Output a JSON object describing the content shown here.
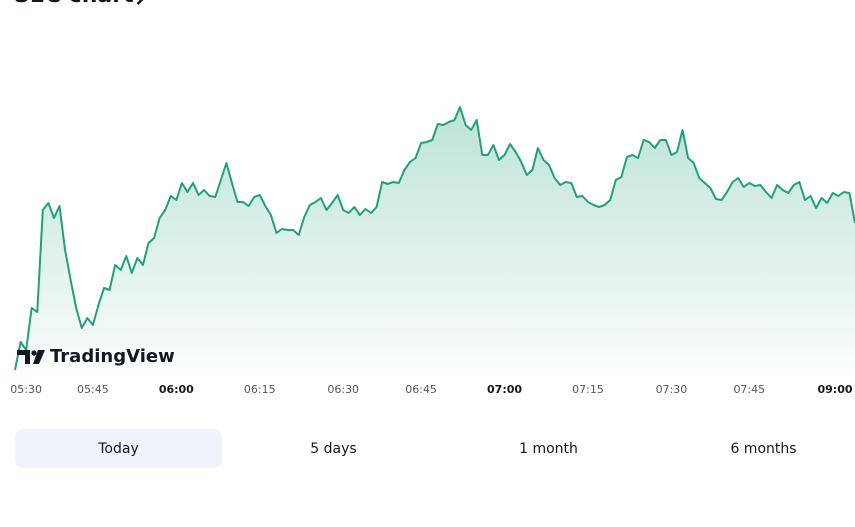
{
  "header": {
    "title": "SEC chart"
  },
  "chart_data": {
    "type": "line",
    "color": "#22a07b",
    "watermark": "TradingView",
    "ylim": [
      0,
      342
    ],
    "categories": [
      null,
      null,
      "05:30",
      null,
      null,
      null,
      null,
      null,
      null,
      null,
      null,
      null,
      null,
      null,
      "05:45",
      null,
      null,
      null,
      null,
      null,
      null,
      null,
      null,
      null,
      null,
      null,
      null,
      null,
      null,
      "06:00",
      null,
      null,
      null,
      null,
      null,
      null,
      null,
      null,
      null,
      null,
      null,
      null,
      null,
      null,
      "06:15",
      null,
      null,
      null,
      null,
      null,
      null,
      null,
      null,
      null,
      null,
      null,
      null,
      null,
      null,
      "06:30",
      null,
      null,
      null,
      null,
      null,
      null,
      null,
      null,
      null,
      null,
      null,
      null,
      null,
      "06:45",
      null,
      null,
      null,
      null,
      null,
      null,
      null,
      null,
      null,
      null,
      null,
      null,
      null,
      null,
      "07:00",
      null,
      null,
      null,
      null,
      null,
      null,
      null,
      null,
      null,
      null,
      null,
      null,
      null,
      null,
      "07:15",
      null,
      null,
      null,
      null,
      null,
      null,
      null,
      null,
      null,
      null,
      null,
      null,
      null,
      null,
      "07:30",
      null,
      null,
      null,
      null,
      null,
      null,
      null,
      null,
      null,
      null,
      null,
      null,
      null,
      "07:45",
      null,
      null,
      null,
      null,
      null,
      null,
      null,
      null,
      null,
      null,
      null,
      null,
      null,
      null,
      null,
      "09:00",
      null,
      null,
      null
    ],
    "bold_labels": [
      29,
      88,
      148
    ],
    "values": [
      2,
      30,
      22,
      64,
      60,
      162,
      169,
      154,
      166,
      122,
      92,
      64,
      44,
      54,
      47,
      67,
      84,
      82,
      107,
      102,
      116,
      99,
      114,
      107,
      129,
      134,
      154,
      162,
      176,
      172,
      189,
      180,
      189,
      177,
      182,
      176,
      175,
      192,
      209,
      189,
      170,
      170,
      166,
      175,
      177,
      166,
      157,
      139,
      143,
      142,
      142,
      137,
      155,
      167,
      170,
      174,
      162,
      169,
      177,
      162,
      159,
      165,
      157,
      163,
      159,
      165,
      190,
      188,
      190,
      189,
      202,
      210,
      214,
      229,
      230,
      232,
      248,
      247,
      250,
      252,
      265,
      247,
      242,
      252,
      217,
      217,
      227,
      212,
      217,
      228,
      220,
      210,
      197,
      202,
      224,
      212,
      207,
      194,
      187,
      190,
      189,
      175,
      176,
      170,
      167,
      165,
      167,
      172,
      192,
      195,
      215,
      217,
      214,
      232,
      230,
      224,
      232,
      232,
      217,
      220,
      242,
      214,
      209,
      194,
      189,
      184,
      173,
      172,
      180,
      190,
      194,
      185,
      189,
      186,
      187,
      180,
      174,
      187,
      182,
      179,
      187,
      190,
      172,
      176,
      164,
      174,
      169,
      179,
      176,
      180,
      179,
      149
    ]
  },
  "buttons": [
    "Today",
    "5 days",
    "1 month",
    "6 months"
  ],
  "selected_button": 0
}
